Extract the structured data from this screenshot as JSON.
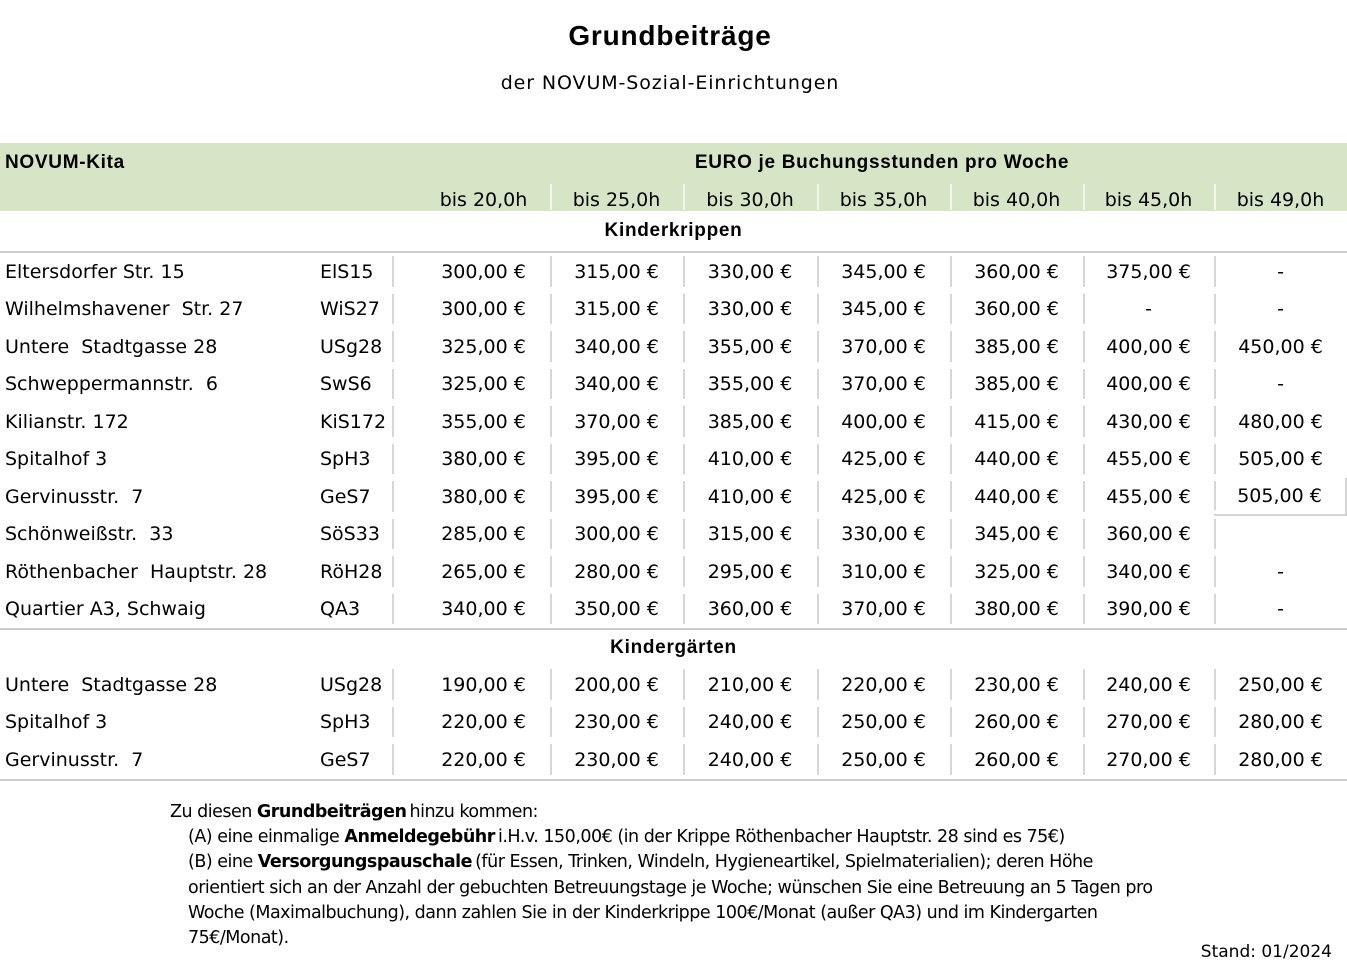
{
  "title": "Grundbeiträge",
  "subtitle": "der NOVUM-Sozial-Einrichtungen",
  "table": {
    "corner_label": "NOVUM-Kita",
    "euro_header": "EURO je Buchungsstunden pro Woche",
    "hour_headers": [
      "bis 20,0h",
      "bis 25,0h",
      "bis 30,0h",
      "bis 35,0h",
      "bis 40,0h",
      "bis 45,0h",
      "bis 49,0h"
    ],
    "sections": [
      {
        "label": "Kinderkrippen",
        "rows": [
          {
            "name": "Eltersdorfer Str. 15",
            "code": "ElS15",
            "prices": [
              "300,00 €",
              "315,00 €",
              "330,00 €",
              "345,00 €",
              "360,00 €",
              "375,00 €",
              "-"
            ]
          },
          {
            "name": "Wilhelmshavener  Str. 27",
            "code": "WiS27",
            "prices": [
              "300,00 €",
              "315,00 €",
              "330,00 €",
              "345,00 €",
              "360,00 €",
              "-",
              "-"
            ]
          },
          {
            "name": "Untere  Stadtgasse 28",
            "code": "USg28",
            "prices": [
              "325,00 €",
              "340,00 €",
              "355,00 €",
              "370,00 €",
              "385,00 €",
              "400,00 €",
              "450,00 €"
            ]
          },
          {
            "name": "Schweppermannstr.  6",
            "code": "SwS6",
            "prices": [
              "325,00 €",
              "340,00 €",
              "355,00 €",
              "370,00 €",
              "385,00 €",
              "400,00 €",
              "-"
            ]
          },
          {
            "name": "Kilianstr. 172",
            "code": "KiS172",
            "prices": [
              "355,00 €",
              "370,00 €",
              "385,00 €",
              "400,00 €",
              "415,00 €",
              "430,00 €",
              "480,00 €"
            ]
          },
          {
            "name": "Spitalhof 3",
            "code": "SpH3",
            "prices": [
              "380,00 €",
              "395,00 €",
              "410,00 €",
              "425,00 €",
              "440,00 €",
              "455,00 €",
              "505,00 €"
            ]
          },
          {
            "name": "Gervinusstr.  7",
            "code": "GeS7",
            "prices": [
              "380,00 €",
              "395,00 €",
              "410,00 €",
              "425,00 €",
              "440,00 €",
              "455,00 €",
              "505,00 €"
            ],
            "last_cell_boxed": true
          },
          {
            "name": "Schönweißstr.  33",
            "code": "SöS33",
            "prices": [
              "285,00 €",
              "300,00 €",
              "315,00 €",
              "330,00 €",
              "345,00 €",
              "360,00 €",
              ""
            ]
          },
          {
            "name": "Röthenbacher  Hauptstr. 28",
            "code": "RöH28",
            "prices": [
              "265,00 €",
              "280,00 €",
              "295,00 €",
              "310,00 €",
              "325,00 €",
              "340,00 €",
              "-"
            ]
          },
          {
            "name": "Quartier A3, Schwaig",
            "code": "QA3",
            "prices": [
              "340,00 €",
              "350,00 €",
              "360,00 €",
              "370,00 €",
              "380,00 €",
              "390,00 €",
              "-"
            ]
          }
        ]
      },
      {
        "label": "Kindergärten",
        "rows": [
          {
            "name": "Untere  Stadtgasse 28",
            "code": "USg28",
            "prices": [
              "190,00 €",
              "200,00 €",
              "210,00 €",
              "220,00 €",
              "230,00 €",
              "240,00 €",
              "250,00 €"
            ]
          },
          {
            "name": "Spitalhof 3",
            "code": "SpH3",
            "prices": [
              "220,00 €",
              "230,00 €",
              "240,00 €",
              "250,00 €",
              "260,00 €",
              "270,00 €",
              "280,00 €"
            ]
          },
          {
            "name": "Gervinusstr.  7",
            "code": "GeS7",
            "prices": [
              "220,00 €",
              "230,00 €",
              "240,00 €",
              "250,00 €",
              "260,00 €",
              "270,00 €",
              "280,00 €"
            ]
          }
        ]
      }
    ]
  },
  "notes": {
    "lines": [
      {
        "indent": false,
        "segments": [
          {
            "text": "Zu diesen ",
            "bold": false
          },
          {
            "text": "Grundbeiträgen",
            "bold": true
          },
          {
            "text": " hinzu kommen:",
            "bold": false
          }
        ]
      },
      {
        "indent": true,
        "segments": [
          {
            "text": "(A) eine einmalige ",
            "bold": false
          },
          {
            "text": "Anmeldegebühr",
            "bold": true
          },
          {
            "text": " i.H.v. 150,00€ (in der Krippe Röthenbacher Hauptstr. 28 sind es 75€)",
            "bold": false
          }
        ]
      },
      {
        "indent": true,
        "segments": [
          {
            "text": "(B) eine ",
            "bold": false
          },
          {
            "text": "Versorgungspauschale",
            "bold": true
          },
          {
            "text": " (für Essen, Trinken, Windeln, Hygieneartikel, Spielmaterialien); deren Höhe",
            "bold": false
          }
        ]
      },
      {
        "indent": true,
        "segments": [
          {
            "text": "orientiert sich an der Anzahl der gebuchten Betreuungstage je Woche; wünschen Sie eine Betreuung an 5 Tagen pro",
            "bold": false
          }
        ]
      },
      {
        "indent": true,
        "segments": [
          {
            "text": "Woche (Maximalbuchung),  dann zahlen Sie in der Kinderkrippe 100€/Monat (außer QA3) und im Kindergarten",
            "bold": false
          }
        ]
      },
      {
        "indent": true,
        "segments": [
          {
            "text": "75€/Monat).",
            "bold": false
          }
        ]
      }
    ]
  },
  "stand": "Stand: 01/2024",
  "colors": {
    "header_green": "#d5e5c5",
    "grid_line": "#d6d6d6",
    "section_line": "#cccccc"
  }
}
